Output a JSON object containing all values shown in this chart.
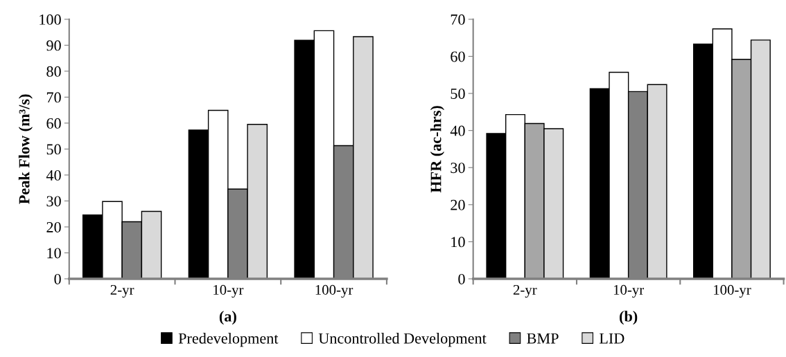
{
  "chart_data": [
    {
      "type": "bar",
      "ylabel": "Peak Flow (m³/s)",
      "annotations": [
        "(a)"
      ],
      "categories": [
        "2-yr",
        "10-yr",
        "100-yr"
      ],
      "ylim": [
        0,
        100
      ],
      "yticks": [
        0,
        10,
        20,
        30,
        40,
        50,
        60,
        70,
        80,
        90,
        100
      ],
      "legend": "bottom",
      "series": [
        {
          "name": "Predevelopment",
          "color": "#000000",
          "values": [
            24.6,
            57.3,
            91.9
          ]
        },
        {
          "name": "Uncontrolled Development",
          "color": "#ffffff",
          "values": [
            29.8,
            64.9,
            95.6
          ]
        },
        {
          "name": "BMP",
          "color": "#808080",
          "values": [
            22.0,
            34.6,
            51.3
          ]
        },
        {
          "name": "LID",
          "color": "#d9d9d9",
          "values": [
            26.0,
            59.5,
            93.3
          ]
        }
      ]
    },
    {
      "type": "bar",
      "ylabel": "HFR (ac-hrs)",
      "annotations": [
        "(b)"
      ],
      "categories": [
        "2-yr",
        "10-yr",
        "100-yr"
      ],
      "ylim": [
        0,
        70
      ],
      "yticks": [
        0,
        10,
        20,
        30,
        40,
        50,
        60,
        70
      ],
      "series": [
        {
          "color": "#000000",
          "values": [
            39.2,
            51.3,
            63.3
          ]
        },
        {
          "color": "#ffffff",
          "values": [
            44.3,
            55.7,
            67.4
          ]
        },
        {
          "colors": [
            "#a6a6a6",
            "#808080",
            "#a6a6a6"
          ],
          "values": [
            41.9,
            50.5,
            59.2
          ]
        },
        {
          "color": "#d9d9d9",
          "values": [
            40.5,
            52.4,
            64.4
          ]
        }
      ]
    }
  ]
}
